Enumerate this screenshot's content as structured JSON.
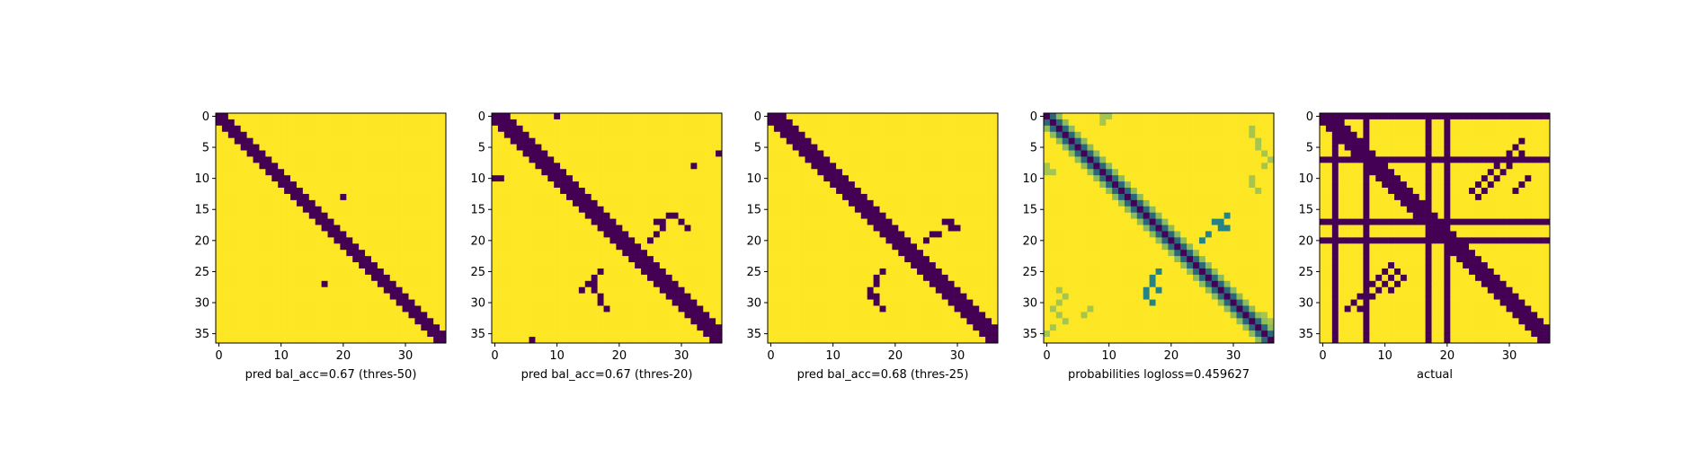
{
  "chart_data": [
    {
      "type": "heatmap",
      "title": "",
      "xlabel": "pred bal_acc=0.67 (thres-50)",
      "ylabel": "",
      "size": 37,
      "xticks": [
        0,
        10,
        20,
        30
      ],
      "yticks": [
        0,
        5,
        10,
        15,
        20,
        25,
        30,
        35
      ],
      "colors": {
        "low": "#440154",
        "high": "#fde725"
      },
      "matrix_description_key": "diagonal_band",
      "band": {
        "offset_low": -1,
        "offset_high": 1
      },
      "extra_low_cells": [
        [
          13,
          20
        ],
        [
          27,
          17
        ]
      ],
      "cross_cells": []
    },
    {
      "type": "heatmap",
      "title": "",
      "xlabel": "pred bal_acc=0.67 (thres-20)",
      "ylabel": "",
      "size": 37,
      "xticks": [
        0,
        10,
        20,
        30
      ],
      "yticks": [
        0,
        5,
        10,
        15,
        20,
        25,
        30,
        35
      ],
      "colors": {
        "low": "#440154",
        "high": "#fde725"
      },
      "matrix_description_key": "diagonal_band_cross",
      "band": {
        "offset_low": -1,
        "offset_high": 2
      },
      "extra_low_cells": [
        [
          0,
          10
        ],
        [
          6,
          36
        ],
        [
          8,
          32
        ],
        [
          10,
          0
        ],
        [
          10,
          1
        ],
        [
          36,
          6
        ]
      ],
      "cross_cells": [
        [
          17,
          27
        ],
        [
          18,
          27
        ],
        [
          16,
          29
        ],
        [
          17,
          30
        ],
        [
          18,
          31
        ],
        [
          17,
          26
        ],
        [
          16,
          28
        ],
        [
          19,
          26
        ],
        [
          20,
          25
        ],
        [
          26,
          16
        ],
        [
          27,
          16
        ],
        [
          28,
          16
        ],
        [
          29,
          17
        ],
        [
          30,
          17
        ],
        [
          31,
          18
        ],
        [
          27,
          15
        ],
        [
          28,
          14
        ],
        [
          25,
          17
        ]
      ]
    },
    {
      "type": "heatmap",
      "title": "",
      "xlabel": "pred bal_acc=0.68 (thres-25)",
      "ylabel": "",
      "size": 37,
      "xticks": [
        0,
        10,
        20,
        30
      ],
      "yticks": [
        0,
        5,
        10,
        15,
        20,
        25,
        30,
        35
      ],
      "colors": {
        "low": "#440154",
        "high": "#fde725"
      },
      "matrix_description_key": "diagonal_band_cross",
      "band": {
        "offset_low": -1,
        "offset_high": 2
      },
      "extra_low_cells": [],
      "cross_cells": [
        [
          17,
          28
        ],
        [
          17,
          29
        ],
        [
          18,
          29
        ],
        [
          18,
          30
        ],
        [
          19,
          26
        ],
        [
          19,
          27
        ],
        [
          20,
          25
        ],
        [
          25,
          18
        ],
        [
          26,
          17
        ],
        [
          27,
          17
        ],
        [
          28,
          16
        ],
        [
          29,
          16
        ],
        [
          29,
          17
        ],
        [
          30,
          17
        ],
        [
          31,
          18
        ]
      ]
    },
    {
      "type": "heatmap",
      "title": "",
      "xlabel": "probabilities logloss=0.459627",
      "ylabel": "",
      "size": 37,
      "xticks": [
        0,
        10,
        20,
        30
      ],
      "yticks": [
        0,
        5,
        10,
        15,
        20,
        25,
        30,
        35
      ],
      "colors": {
        "low": "#440154",
        "mid": "#21918c",
        "high": "#fde725"
      },
      "matrix_description_key": "probability_gradient",
      "band": {
        "offset_low": -1,
        "offset_high": 1
      },
      "extra_low_cells": [],
      "cross_cells": [
        [
          17,
          27
        ],
        [
          17,
          28
        ],
        [
          18,
          28
        ],
        [
          18,
          29
        ],
        [
          19,
          26
        ],
        [
          20,
          25
        ],
        [
          16,
          29
        ],
        [
          26,
          17
        ],
        [
          27,
          17
        ],
        [
          28,
          16
        ],
        [
          29,
          16
        ],
        [
          30,
          17
        ],
        [
          28,
          18
        ],
        [
          25,
          18
        ]
      ]
    },
    {
      "type": "heatmap",
      "title": "",
      "xlabel": "actual",
      "ylabel": "",
      "size": 37,
      "xticks": [
        0,
        10,
        20,
        30
      ],
      "yticks": [
        0,
        5,
        10,
        15,
        20,
        25,
        30,
        35
      ],
      "colors": {
        "low": "#440154",
        "high": "#fde725"
      },
      "matrix_description_key": "actual_grid",
      "band": {
        "offset_low": -1,
        "offset_high": 2
      },
      "low_rows": [
        0,
        7,
        17,
        20
      ],
      "low_cols": [
        2,
        7,
        17,
        20
      ],
      "extra_low_cells": [],
      "cross_cells": [
        [
          4,
          32
        ],
        [
          5,
          31
        ],
        [
          6,
          30
        ],
        [
          7,
          29
        ],
        [
          8,
          28
        ],
        [
          9,
          27
        ],
        [
          10,
          26
        ],
        [
          11,
          25
        ],
        [
          12,
          24
        ],
        [
          6,
          32
        ],
        [
          7,
          31
        ],
        [
          8,
          30
        ],
        [
          9,
          29
        ],
        [
          10,
          28
        ],
        [
          11,
          27
        ],
        [
          12,
          26
        ],
        [
          13,
          25
        ],
        [
          10,
          33
        ],
        [
          11,
          32
        ],
        [
          12,
          31
        ],
        [
          24,
          11
        ],
        [
          25,
          10
        ],
        [
          26,
          9
        ],
        [
          27,
          8
        ],
        [
          28,
          7
        ],
        [
          29,
          6
        ],
        [
          30,
          5
        ],
        [
          31,
          4
        ],
        [
          25,
          12
        ],
        [
          26,
          11
        ],
        [
          27,
          10
        ],
        [
          28,
          9
        ],
        [
          29,
          8
        ],
        [
          30,
          7
        ],
        [
          31,
          6
        ],
        [
          26,
          13
        ],
        [
          27,
          12
        ],
        [
          28,
          11
        ]
      ]
    }
  ]
}
